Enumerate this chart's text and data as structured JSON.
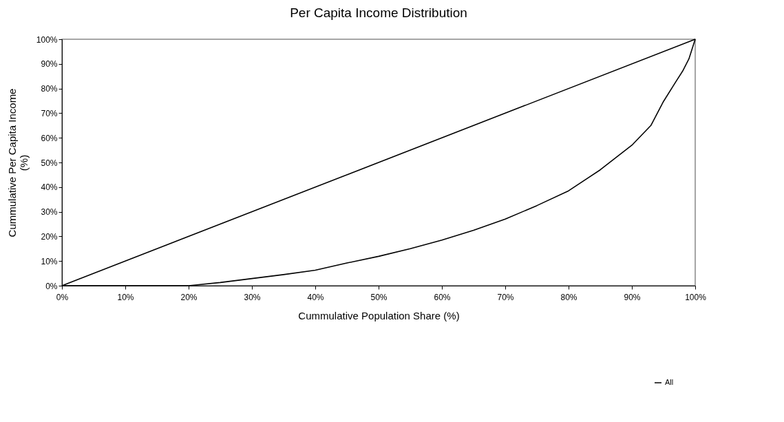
{
  "chart_data": {
    "type": "line",
    "title": "Per Capita Income Distribution",
    "xlabel": "Cummulative Population Share (%)",
    "ylabel": "Cummulative Per Capita Income\n(%)",
    "xlim": [
      0,
      100
    ],
    "ylim": [
      0,
      100
    ],
    "xticks": [
      {
        "value": 0,
        "label": "0%"
      },
      {
        "value": 10,
        "label": "10%"
      },
      {
        "value": 20,
        "label": "20%"
      },
      {
        "value": 30,
        "label": "30%"
      },
      {
        "value": 40,
        "label": "40%"
      },
      {
        "value": 50,
        "label": "50%"
      },
      {
        "value": 60,
        "label": "60%"
      },
      {
        "value": 70,
        "label": "70%"
      },
      {
        "value": 80,
        "label": "80%"
      },
      {
        "value": 90,
        "label": "90%"
      },
      {
        "value": 100,
        "label": "100%"
      }
    ],
    "yticks": [
      {
        "value": 0,
        "label": "0%"
      },
      {
        "value": 10,
        "label": "10%"
      },
      {
        "value": 20,
        "label": "20%"
      },
      {
        "value": 30,
        "label": "30%"
      },
      {
        "value": 40,
        "label": "40%"
      },
      {
        "value": 50,
        "label": "50%"
      },
      {
        "value": 60,
        "label": "60%"
      },
      {
        "value": 70,
        "label": "70%"
      },
      {
        "value": 80,
        "label": "80%"
      },
      {
        "value": 90,
        "label": "90%"
      },
      {
        "value": 100,
        "label": "100%"
      }
    ],
    "series": [
      {
        "color": "#000000",
        "x": [
          0,
          100
        ],
        "values": [
          0,
          100
        ]
      },
      {
        "name": "All",
        "color": "#000000",
        "x": [
          0,
          10,
          20,
          25,
          30,
          35,
          40,
          45,
          50,
          55,
          60,
          65,
          70,
          75,
          80,
          85,
          90,
          93,
          95,
          97,
          98,
          99,
          100
        ],
        "values": [
          0,
          0,
          0,
          1.3,
          2.9,
          4.5,
          6.3,
          9.2,
          11.9,
          15,
          18.5,
          22.5,
          27,
          32.5,
          38.5,
          47,
          57,
          65,
          74.8,
          83,
          87,
          92,
          100
        ]
      }
    ],
    "grid": false,
    "legend": "bottom right",
    "marker": "none",
    "line_style": "solid"
  }
}
